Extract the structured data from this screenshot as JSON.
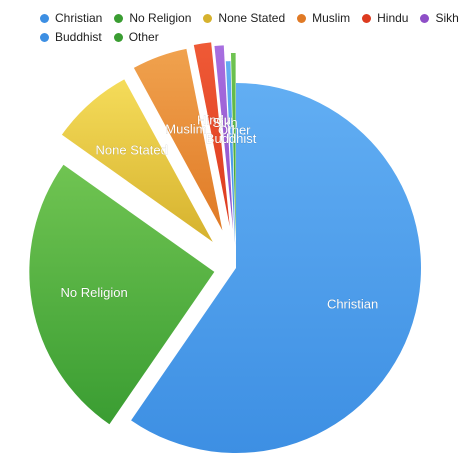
{
  "chart_data": {
    "type": "pie",
    "title": "",
    "legend_placement": "top",
    "series": [
      {
        "name": "Christian",
        "value": 59.3,
        "color": "#3d8fe3",
        "light": "#62aef3",
        "label_side": "inside"
      },
      {
        "name": "No Religion",
        "value": 25.1,
        "color": "#3a9d32",
        "light": "#70c452",
        "label_side": "inside"
      },
      {
        "name": "None Stated",
        "value": 7.2,
        "color": "#d6b22e",
        "light": "#f5dc5a",
        "label_side": "inside"
      },
      {
        "name": "Muslim",
        "value": 4.8,
        "color": "#e07a26",
        "light": "#f0a24e",
        "label_side": "outside"
      },
      {
        "name": "Hindu",
        "value": 1.5,
        "color": "#dd3b1f",
        "light": "#ef5a36",
        "label_side": "outside"
      },
      {
        "name": "Sikh",
        "value": 0.8,
        "color": "#8e4fc7",
        "light": "#a86fe0",
        "label_side": "outside"
      },
      {
        "name": "Buddhist",
        "value": 0.4,
        "color": "#3d8fe3",
        "light": "#62aef3",
        "label_side": "outside"
      },
      {
        "name": "Other",
        "value": 0.4,
        "color": "#3a9d32",
        "light": "#70c452",
        "label_side": "outside"
      }
    ]
  }
}
